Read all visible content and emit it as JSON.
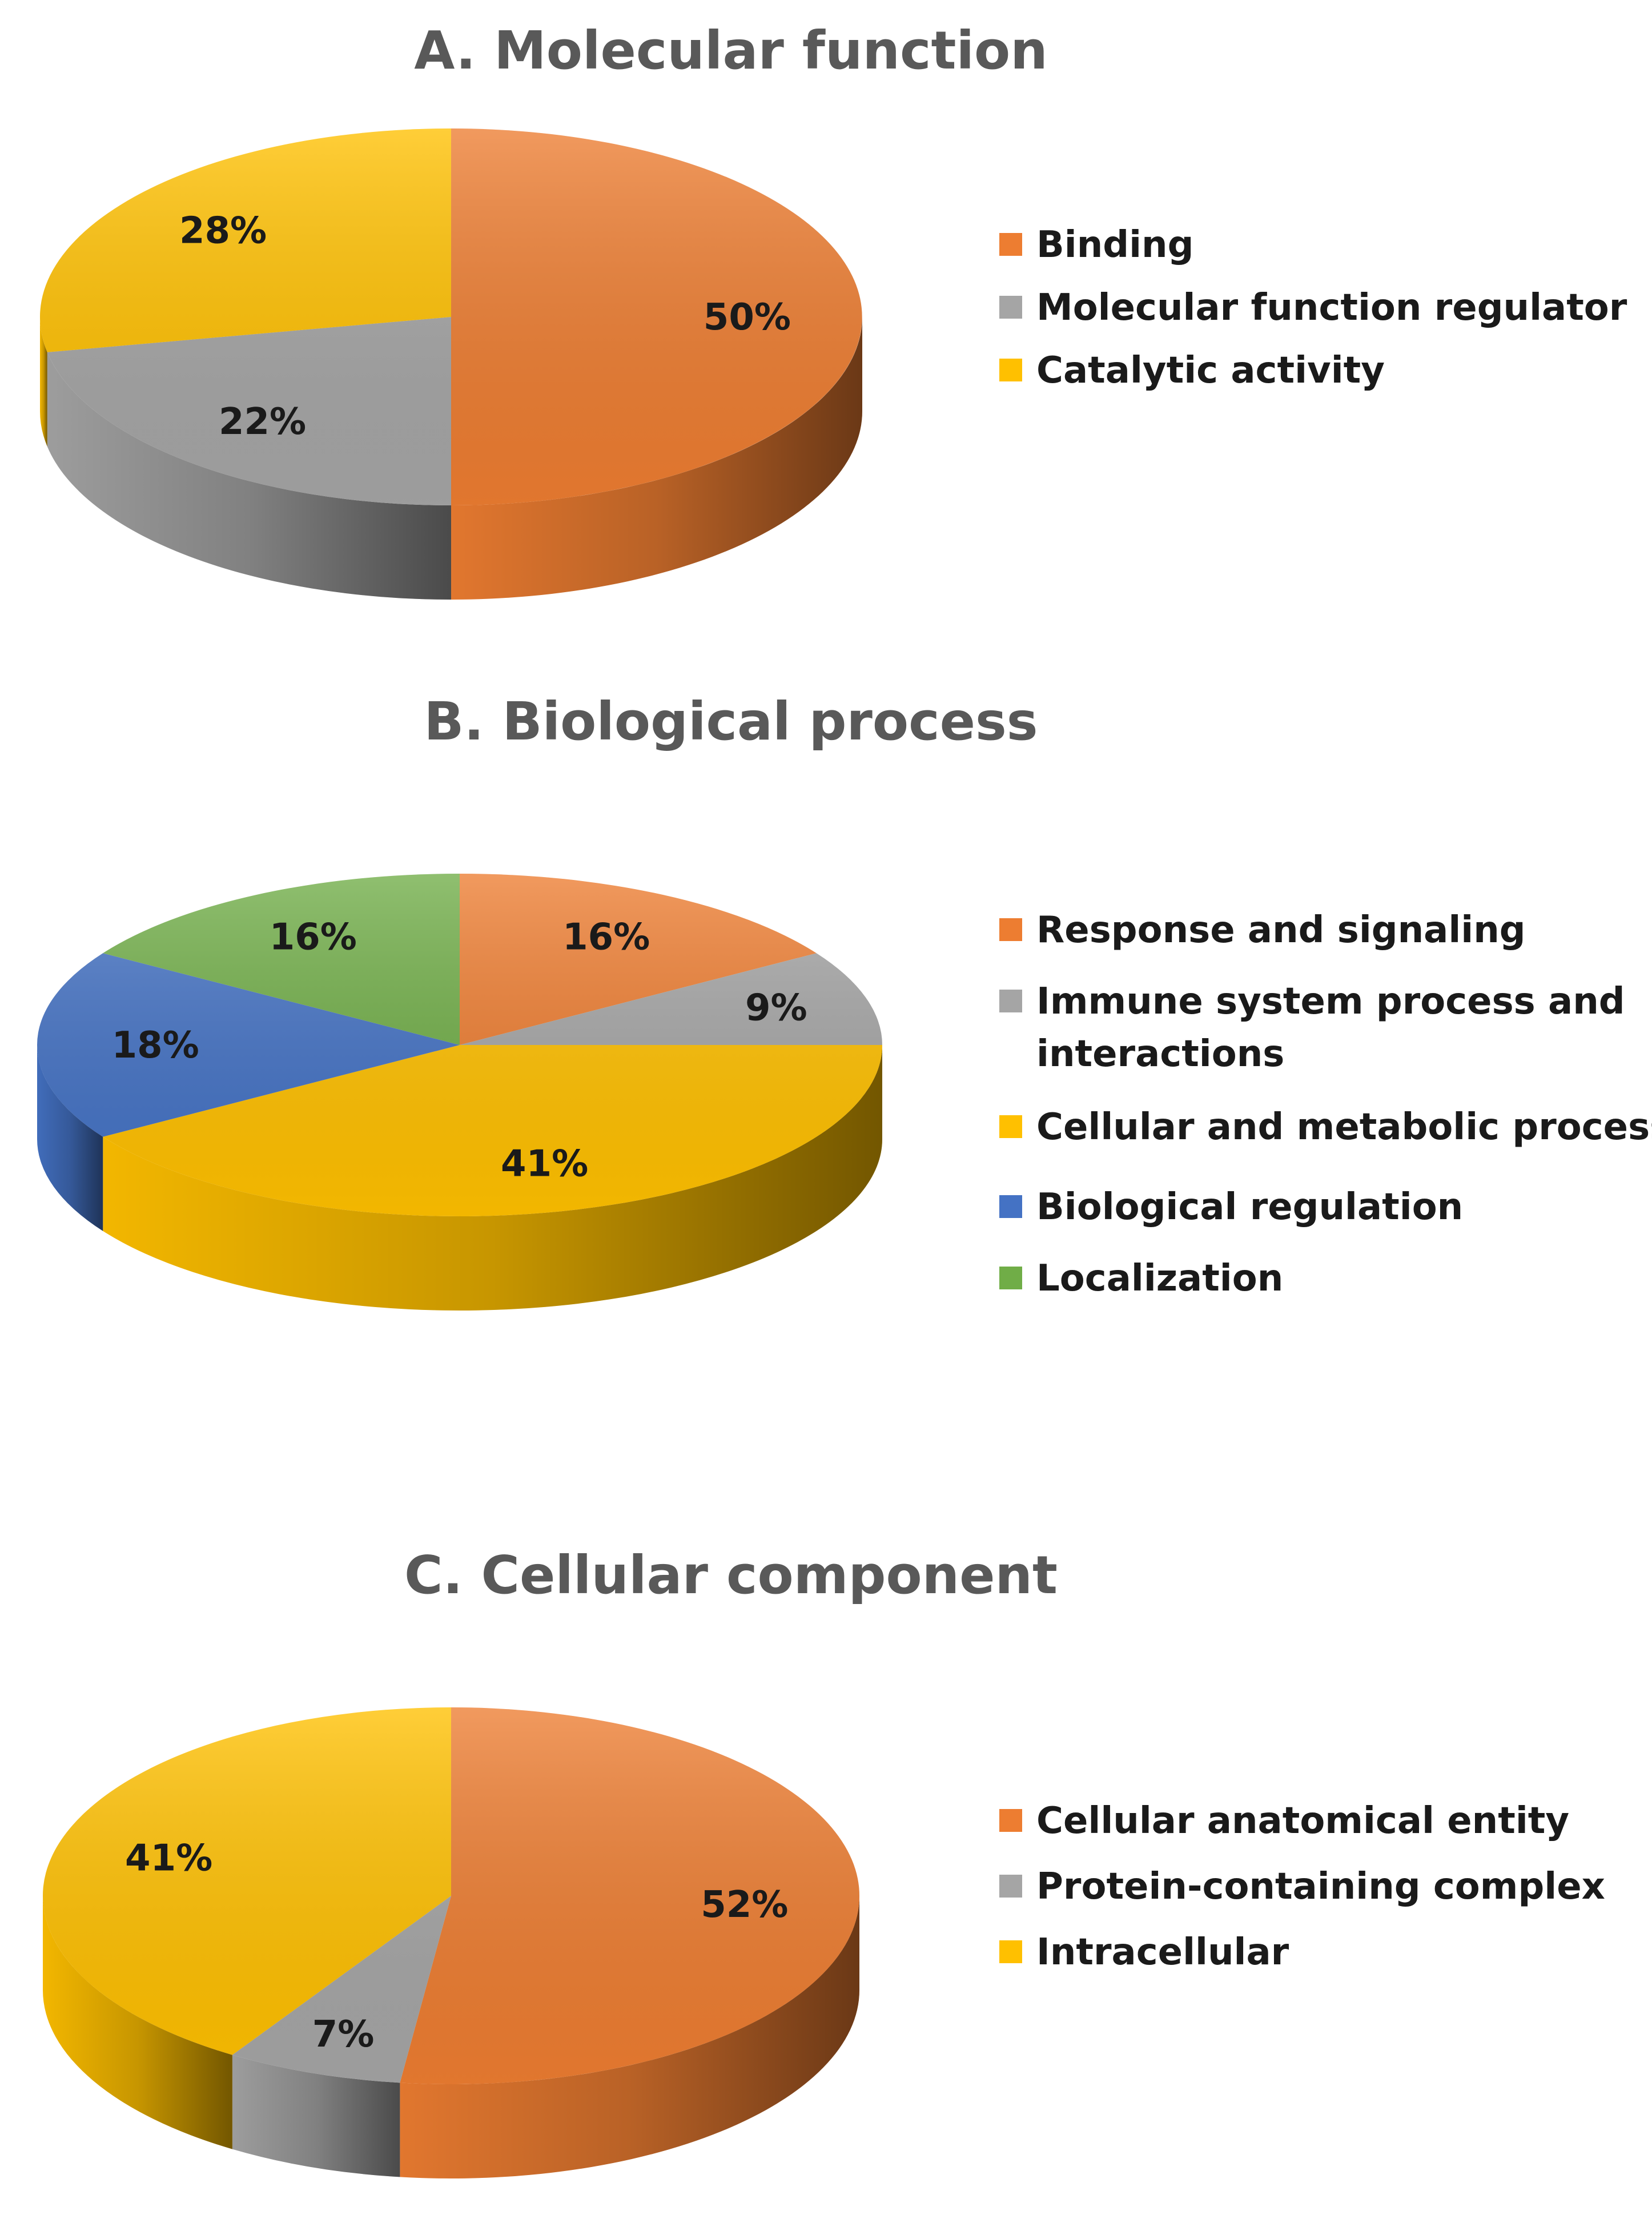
{
  "colors": {
    "orange": "#ED7D31",
    "gray": "#A5A5A5",
    "gold": "#FFC000",
    "blue": "#4472C4",
    "green": "#70AD47",
    "title": "#595959",
    "text": "#1a1a1a"
  },
  "chart_data": [
    {
      "type": "pie",
      "title": "A. Molecular function",
      "categories": [
        "Binding",
        "Molecular function regulator",
        "Catalytic activity"
      ],
      "values": [
        50,
        22,
        28
      ],
      "data_labels": [
        "50%",
        "22%",
        "28%"
      ],
      "series_colors": [
        "orange",
        "gray",
        "gold"
      ],
      "legend_lines": [
        [
          "Binding"
        ],
        [
          "Molecular function regulator"
        ],
        [
          "Catalytic activity"
        ]
      ],
      "legend_position": "right"
    },
    {
      "type": "pie",
      "title": "B. Biological process",
      "categories": [
        "Response and signaling",
        "Immune system process and interactions",
        "Cellular and metabolic process",
        "Biological regulation",
        "Localization"
      ],
      "values": [
        16,
        9,
        41,
        18,
        16
      ],
      "data_labels": [
        "16%",
        "9%",
        "41%",
        "18%",
        "16%"
      ],
      "series_colors": [
        "orange",
        "gray",
        "gold",
        "blue",
        "green"
      ],
      "legend_lines": [
        [
          "Response and signaling"
        ],
        [
          "Immune system process and",
          "interactions"
        ],
        [
          "Cellular and metabolic process"
        ],
        [
          "Biological regulation"
        ],
        [
          "Localization"
        ]
      ],
      "legend_position": "right"
    },
    {
      "type": "pie",
      "title": "C. Cellular component",
      "categories": [
        "Cellular anatomical entity",
        "Protein-containing complex",
        "Intracellular"
      ],
      "values": [
        52,
        7,
        41
      ],
      "data_labels": [
        "52%",
        "7%",
        "41%"
      ],
      "series_colors": [
        "orange",
        "gray",
        "gold"
      ],
      "legend_lines": [
        [
          "Cellular anatomical entity"
        ],
        [
          "Protein-containing complex"
        ],
        [
          "Intracellular"
        ]
      ],
      "legend_position": "right"
    }
  ]
}
